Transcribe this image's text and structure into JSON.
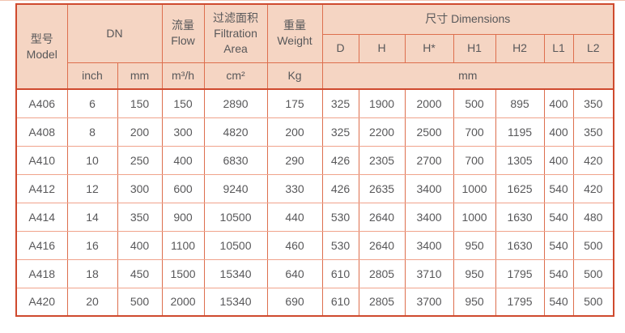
{
  "page": {
    "top_strip_color": "#f2c3b0"
  },
  "table": {
    "header": {
      "model": "型号\nModel",
      "dn": "DN",
      "flow": "流量\nFlow",
      "filtration_area": "过滤面积\nFiltration\nArea",
      "weight": "重量\nWeight",
      "dimensions": "尺寸 Dimensions",
      "dim_cols": [
        "D",
        "H",
        "H*",
        "H1",
        "H2",
        "L1",
        "L2"
      ],
      "units": {
        "inch": "inch",
        "mm": "mm",
        "flow": "m³/h",
        "filtration_area": "cm²",
        "weight": "Kg",
        "dimensions": "mm"
      }
    },
    "rows": [
      {
        "model": "A406",
        "dn_inch": "6",
        "dn_mm": "150",
        "flow": "150",
        "filtration_area": "2890",
        "weight": "175",
        "d": "325",
        "h": "1900",
        "h_star": "2000",
        "h1": "500",
        "h2": "895",
        "l1": "400",
        "l2": "350"
      },
      {
        "model": "A408",
        "dn_inch": "8",
        "dn_mm": "200",
        "flow": "300",
        "filtration_area": "4820",
        "weight": "200",
        "d": "325",
        "h": "2200",
        "h_star": "2500",
        "h1": "700",
        "h2": "1195",
        "l1": "400",
        "l2": "350"
      },
      {
        "model": "A410",
        "dn_inch": "10",
        "dn_mm": "250",
        "flow": "400",
        "filtration_area": "6830",
        "weight": "290",
        "d": "426",
        "h": "2305",
        "h_star": "2700",
        "h1": "700",
        "h2": "1305",
        "l1": "400",
        "l2": "420"
      },
      {
        "model": "A412",
        "dn_inch": "12",
        "dn_mm": "300",
        "flow": "600",
        "filtration_area": "9240",
        "weight": "330",
        "d": "426",
        "h": "2635",
        "h_star": "3400",
        "h1": "1000",
        "h2": "1625",
        "l1": "540",
        "l2": "420"
      },
      {
        "model": "A414",
        "dn_inch": "14",
        "dn_mm": "350",
        "flow": "900",
        "filtration_area": "10500",
        "weight": "440",
        "d": "530",
        "h": "2640",
        "h_star": "3400",
        "h1": "1000",
        "h2": "1630",
        "l1": "540",
        "l2": "480"
      },
      {
        "model": "A416",
        "dn_inch": "16",
        "dn_mm": "400",
        "flow": "1100",
        "filtration_area": "10500",
        "weight": "460",
        "d": "530",
        "h": "2640",
        "h_star": "3400",
        "h1": "950",
        "h2": "1630",
        "l1": "540",
        "l2": "500"
      },
      {
        "model": "A418",
        "dn_inch": "18",
        "dn_mm": "450",
        "flow": "1500",
        "filtration_area": "15340",
        "weight": "640",
        "d": "610",
        "h": "2805",
        "h_star": "3710",
        "h1": "950",
        "h2": "1795",
        "l1": "540",
        "l2": "500"
      },
      {
        "model": "A420",
        "dn_inch": "20",
        "dn_mm": "500",
        "flow": "2000",
        "filtration_area": "15340",
        "weight": "690",
        "d": "610",
        "h": "2805",
        "h_star": "3700",
        "h1": "950",
        "h2": "1795",
        "l1": "540",
        "l2": "500"
      }
    ],
    "column_keys": [
      "model",
      "dn_inch",
      "dn_mm",
      "flow",
      "filtration_area",
      "weight",
      "d",
      "h",
      "h_star",
      "h1",
      "h2",
      "l1",
      "l2"
    ],
    "colors": {
      "header_fill": "#f5d5c3",
      "outer_border": "#cf4a2e",
      "inner_border_vertical": "#dd6f4e",
      "inner_border_horizontal": "#f0a38c",
      "text": "#58585a"
    }
  }
}
